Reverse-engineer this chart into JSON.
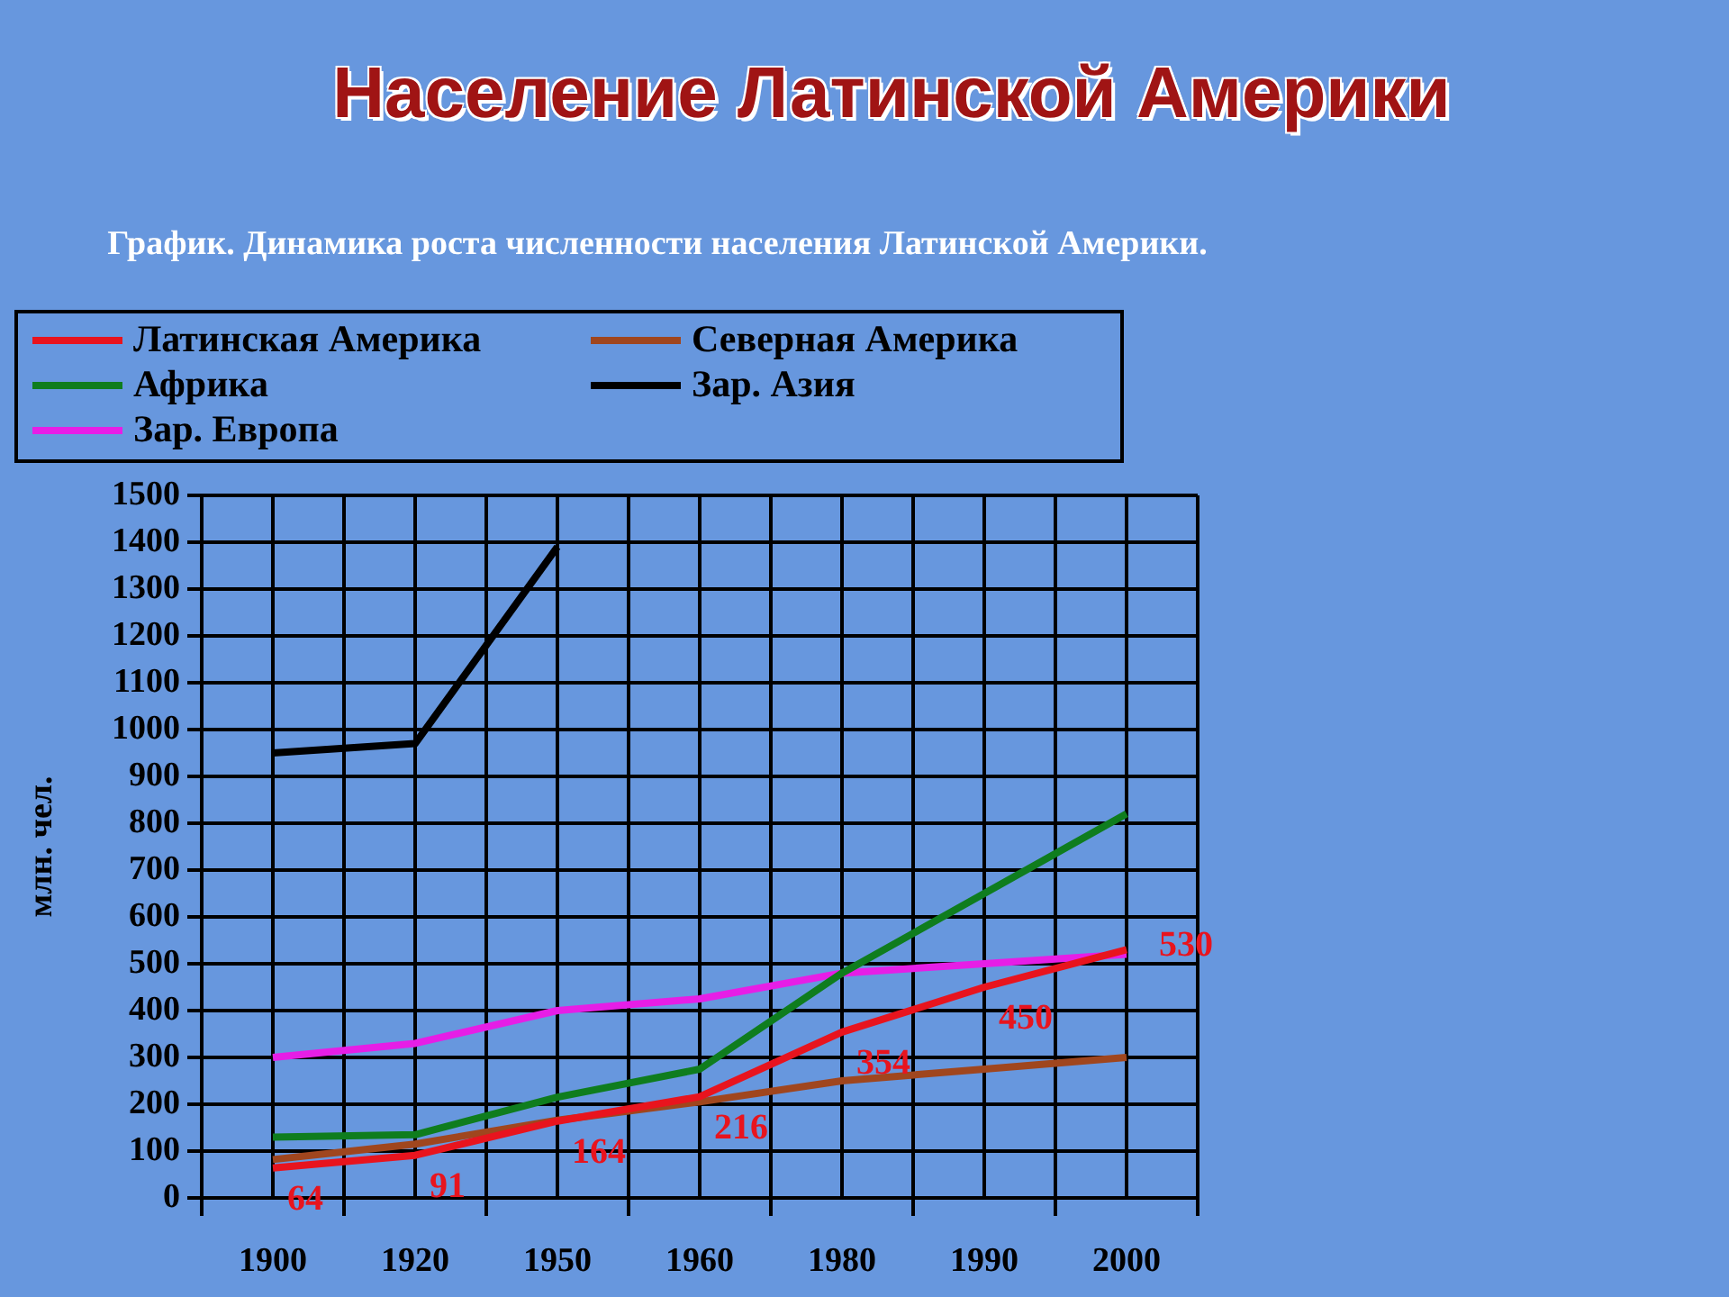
{
  "chart_data": {
    "type": "line",
    "title": "Население Латинской Америки",
    "subtitle": "График. Динамика роста численности населения Латинской Америки.",
    "ylabel": "млн. чел.",
    "categories": [
      "1900",
      "1920",
      "1950",
      "1960",
      "1980",
      "1990",
      "2000"
    ],
    "series": [
      {
        "name": "Латинская Америка",
        "color": "#e8141e",
        "values": [
          64,
          91,
          164,
          216,
          354,
          450,
          530
        ],
        "value_labels": [
          "64",
          "91",
          "164",
          "216",
          "354",
          "450",
          "530"
        ]
      },
      {
        "name": "Северная Америка",
        "color": "#a0461e",
        "values": [
          82,
          115,
          166,
          205,
          250,
          275,
          300
        ]
      },
      {
        "name": "Африка",
        "color": "#0f7d1e",
        "values": [
          130,
          135,
          215,
          275,
          480,
          650,
          820
        ]
      },
      {
        "name": "Зар. Азия",
        "color": "#000000",
        "values": [
          950,
          970,
          1390,
          null,
          null,
          null,
          null
        ]
      },
      {
        "name": "Зар. Европа",
        "color": "#e61ee6",
        "values": [
          300,
          330,
          400,
          425,
          480,
          500,
          520
        ]
      }
    ],
    "ylim": [
      0,
      1500
    ],
    "yticks": [
      0,
      100,
      200,
      300,
      400,
      500,
      600,
      700,
      800,
      900,
      1000,
      1100,
      1200,
      1300,
      1400,
      1500
    ],
    "grid": true,
    "legend": "top left",
    "marker": "none",
    "line_style": "solid"
  }
}
